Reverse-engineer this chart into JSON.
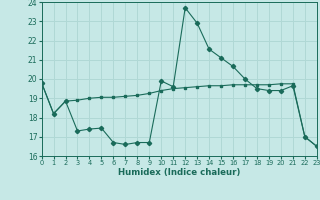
{
  "title": "",
  "xlabel": "Humidex (Indice chaleur)",
  "ylabel": "",
  "background_color": "#c6e8e6",
  "grid_color": "#b0d8d5",
  "line_color": "#1a6b5a",
  "x_values": [
    0,
    1,
    2,
    3,
    4,
    5,
    6,
    7,
    8,
    9,
    10,
    11,
    12,
    13,
    14,
    15,
    16,
    17,
    18,
    19,
    20,
    21,
    22,
    23
  ],
  "series1": [
    19.8,
    18.2,
    18.85,
    17.3,
    17.4,
    17.45,
    16.7,
    16.6,
    16.7,
    16.7,
    19.9,
    19.6,
    23.7,
    22.9,
    21.55,
    21.1,
    20.65,
    20.0,
    19.5,
    19.4,
    19.4,
    19.65,
    17.0,
    16.5
  ],
  "series2": [
    19.8,
    18.2,
    18.85,
    18.9,
    19.0,
    19.05,
    19.05,
    19.1,
    19.15,
    19.25,
    19.4,
    19.5,
    19.55,
    19.6,
    19.65,
    19.65,
    19.7,
    19.7,
    19.7,
    19.7,
    19.75,
    19.75,
    17.0,
    16.5
  ],
  "ylim": [
    16,
    24
  ],
  "xlim": [
    0,
    23
  ],
  "yticks": [
    16,
    17,
    18,
    19,
    20,
    21,
    22,
    23,
    24
  ],
  "xticks": [
    0,
    1,
    2,
    3,
    4,
    5,
    6,
    7,
    8,
    9,
    10,
    11,
    12,
    13,
    14,
    15,
    16,
    17,
    18,
    19,
    20,
    21,
    22,
    23
  ]
}
